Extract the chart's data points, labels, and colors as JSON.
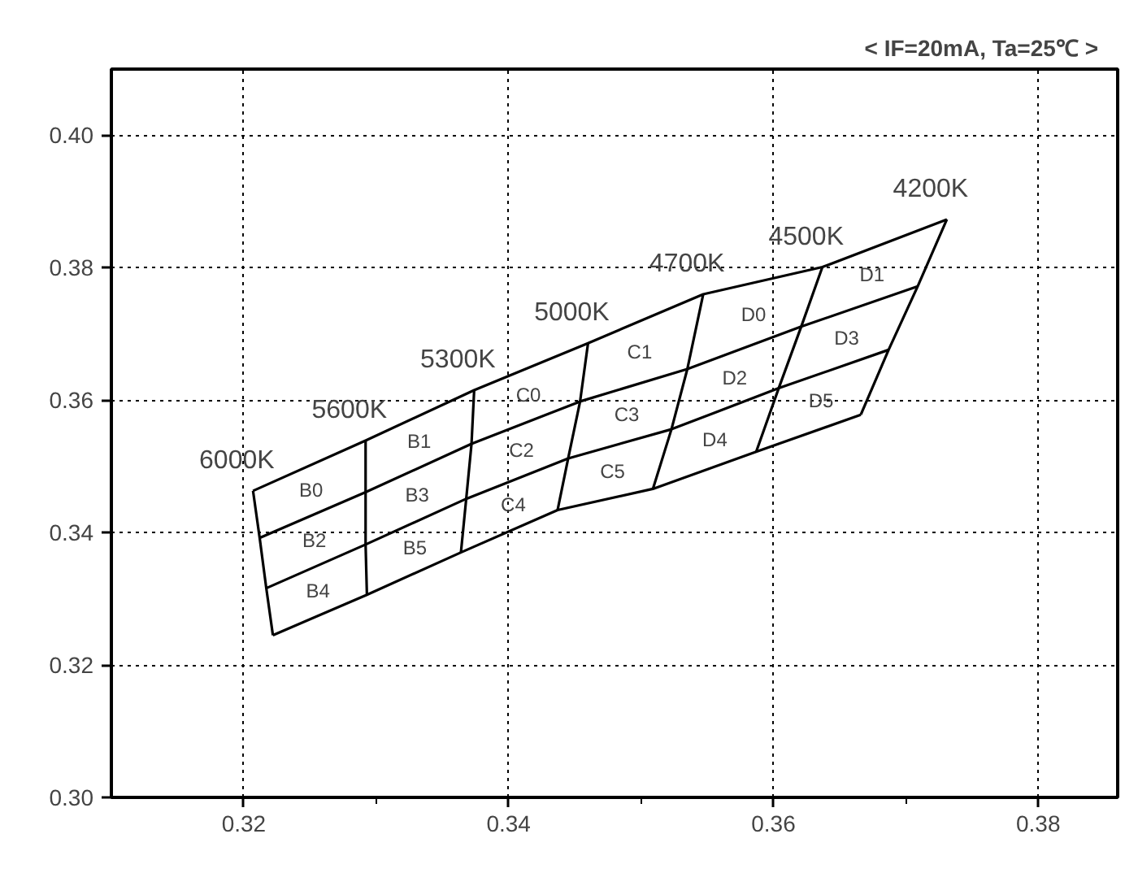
{
  "chart_data": {
    "type": "line",
    "title": "< IF=20mA, Ta=25℃ >",
    "xlim": [
      0.31,
      0.386
    ],
    "ylim": [
      0.3,
      0.41
    ],
    "xticks": [
      0.32,
      {
        "value": 0.33,
        "label": null
      },
      0.34,
      {
        "value": 0.35,
        "label": null
      },
      0.36,
      {
        "value": 0.37,
        "label": null
      },
      0.38
    ],
    "yticks": [
      {
        "value": 0.3,
        "label": "0.30"
      },
      0.32,
      0.34,
      0.36,
      0.38,
      {
        "value": 0.4,
        "label": "0.40"
      }
    ],
    "grid": true,
    "marker": "none",
    "line_style": "solid",
    "series": [
      {
        "color": "#000000",
        "x": [
          0.3207,
          0.3292,
          0.3374,
          0.346,
          0.3547,
          0.3637,
          0.3731
        ],
        "values": [
          0.3463,
          0.3539,
          0.3615,
          0.3686,
          0.376,
          0.3801,
          0.3873
        ]
      },
      {
        "color": "#000000",
        "x": [
          0.3212,
          0.3292,
          0.3372,
          0.3454,
          0.3535,
          0.3621,
          0.3709
        ],
        "values": [
          0.3392,
          0.3461,
          0.3534,
          0.3598,
          0.3647,
          0.3711,
          0.3772
        ]
      },
      {
        "color": "#000000",
        "x": [
          0.3217,
          0.3292,
          0.3368,
          0.3445,
          0.3523,
          0.3604,
          0.3687
        ],
        "values": [
          0.3316,
          0.3382,
          0.3451,
          0.3512,
          0.3556,
          0.3618,
          0.3676
        ]
      },
      {
        "color": "#000000",
        "x": [
          0.3222,
          0.3293,
          0.3364,
          0.3437,
          0.3509,
          0.3587,
          0.3666
        ],
        "values": [
          0.3245,
          0.3306,
          0.337,
          0.3434,
          0.3466,
          0.3522,
          0.3578
        ]
      },
      {
        "color": "#000000",
        "x": [
          0.3207,
          0.3212,
          0.3217,
          0.3222
        ],
        "values": [
          0.3463,
          0.3392,
          0.3316,
          0.3245
        ]
      },
      {
        "color": "#000000",
        "x": [
          0.3292,
          0.3292,
          0.3292,
          0.3293
        ],
        "values": [
          0.3539,
          0.3461,
          0.3382,
          0.3306
        ]
      },
      {
        "color": "#000000",
        "x": [
          0.3374,
          0.3372,
          0.3368,
          0.3364
        ],
        "values": [
          0.3615,
          0.3534,
          0.3451,
          0.337
        ]
      },
      {
        "color": "#000000",
        "x": [
          0.346,
          0.3454,
          0.3445,
          0.3437
        ],
        "values": [
          0.3686,
          0.3598,
          0.3512,
          0.3434
        ]
      },
      {
        "color": "#000000",
        "x": [
          0.3547,
          0.3535,
          0.3523,
          0.3509
        ],
        "values": [
          0.376,
          0.3647,
          0.3556,
          0.3466
        ]
      },
      {
        "color": "#000000",
        "x": [
          0.3637,
          0.3621,
          0.3604,
          0.3587
        ],
        "values": [
          0.3801,
          0.3711,
          0.3618,
          0.3522
        ]
      },
      {
        "color": "#000000",
        "x": [
          0.3731,
          0.3709,
          0.3687,
          0.3666
        ],
        "values": [
          0.3873,
          0.3772,
          0.3676,
          0.3578
        ]
      }
    ],
    "annotations": [
      "6000K",
      "5600K",
      "5300K",
      "5000K",
      "4700K",
      "4500K",
      "4200K",
      "B0",
      "B1",
      "B2",
      "B3",
      "B4",
      "B5",
      "C0",
      "C1",
      "C2",
      "C3",
      "C4",
      "C5",
      "D0",
      "D1",
      "D2",
      "D3",
      "D4",
      "D5"
    ]
  }
}
